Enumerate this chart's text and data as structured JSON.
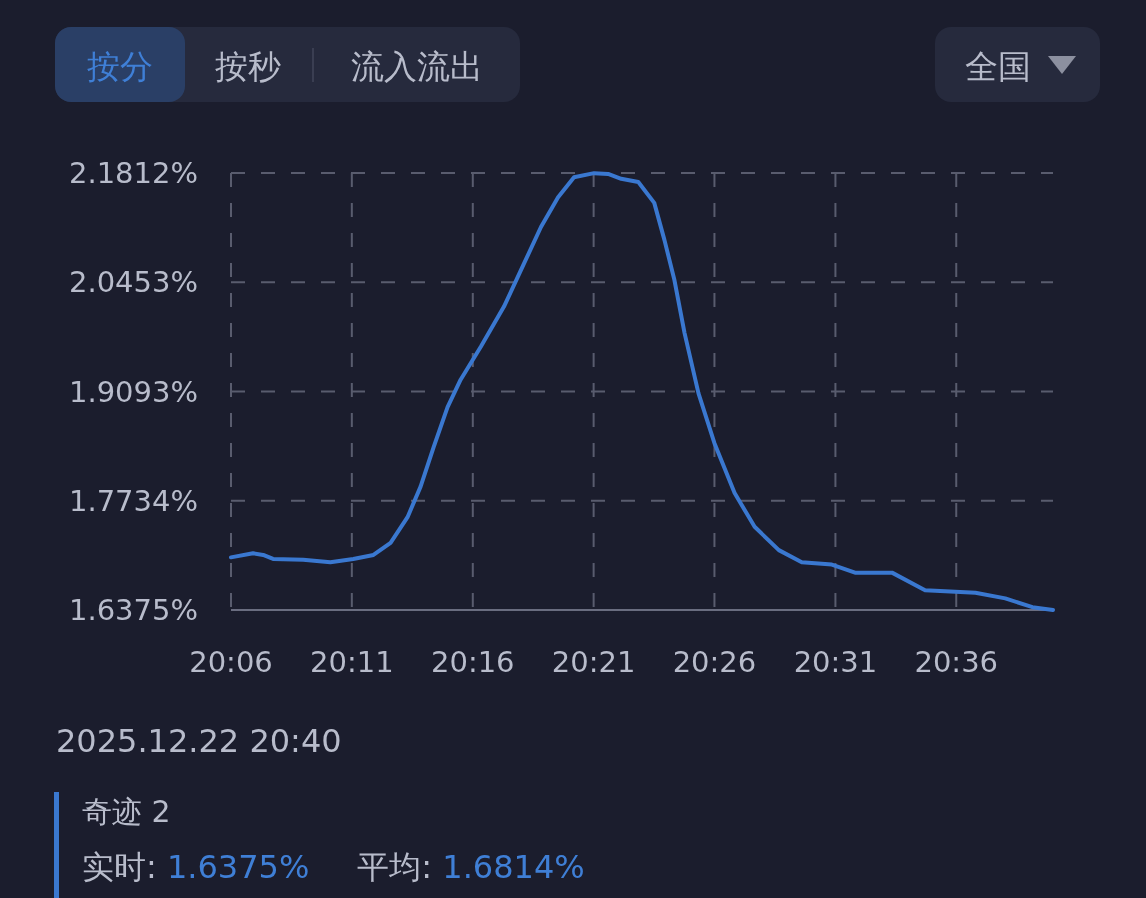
{
  "chart_data": {
    "type": "line",
    "annotations": [
      "按分",
      "按秒",
      "流入流出",
      "全国",
      "2025.12.22 20:40",
      "实时: 1.6375%",
      "平均: 1.6814%"
    ],
    "x": [
      20.1,
      20.1152,
      20.1222,
      20.129,
      20.1498,
      20.1685,
      20.1843,
      20.1982,
      20.21,
      20.2217,
      20.2307,
      20.2397,
      20.2493,
      20.2583,
      20.2722,
      20.2882,
      20.2998,
      20.3137,
      20.3255,
      20.3365,
      20.3503,
      20.36,
      20.369,
      20.3808,
      20.3918,
      20.3988,
      20.4057,
      20.4127,
      20.4223,
      20.4333,
      20.4472,
      20.461,
      20.4777,
      20.4935,
      20.5142,
      20.5302,
      20.5557,
      20.5785,
      20.6132,
      20.6338,
      20.6525,
      20.6667
    ],
    "series": [
      {
        "name": "奇迹 2",
        "color": "#3a78d0",
        "values": [
          1.703,
          1.708,
          1.706,
          1.701,
          1.7,
          1.697,
          1.701,
          1.706,
          1.721,
          1.753,
          1.791,
          1.84,
          1.89,
          1.924,
          1.965,
          2.015,
          2.06,
          2.114,
          2.151,
          2.176,
          2.181,
          2.18,
          2.174,
          2.17,
          2.144,
          2.098,
          2.048,
          1.982,
          1.907,
          1.845,
          1.783,
          1.741,
          1.712,
          1.697,
          1.694,
          1.684,
          1.684,
          1.662,
          1.659,
          1.652,
          1.641,
          1.6375
        ]
      }
    ],
    "xlim": [
      20.1,
      20.6667
    ],
    "xticks": [
      {
        "value": 20.1,
        "label": "20:06"
      },
      {
        "value": 20.1833,
        "label": "20:11"
      },
      {
        "value": 20.2667,
        "label": "20:16"
      },
      {
        "value": 20.35,
        "label": "20:21"
      },
      {
        "value": 20.4333,
        "label": "20:26"
      },
      {
        "value": 20.5167,
        "label": "20:31"
      },
      {
        "value": 20.6,
        "label": "20:36"
      }
    ],
    "ylim": [
      1.6375,
      2.1812
    ],
    "yticks": [
      {
        "value": 1.6375,
        "label": "1.6375%"
      },
      {
        "value": 1.7734,
        "label": "1.7734%"
      },
      {
        "value": 1.9093,
        "label": "1.9093%"
      },
      {
        "value": 2.0453,
        "label": "2.0453%"
      },
      {
        "value": 2.1812,
        "label": "2.1812%"
      }
    ],
    "grid": true,
    "line_style": "solid",
    "marker": "none",
    "legend": "bottom left"
  }
}
